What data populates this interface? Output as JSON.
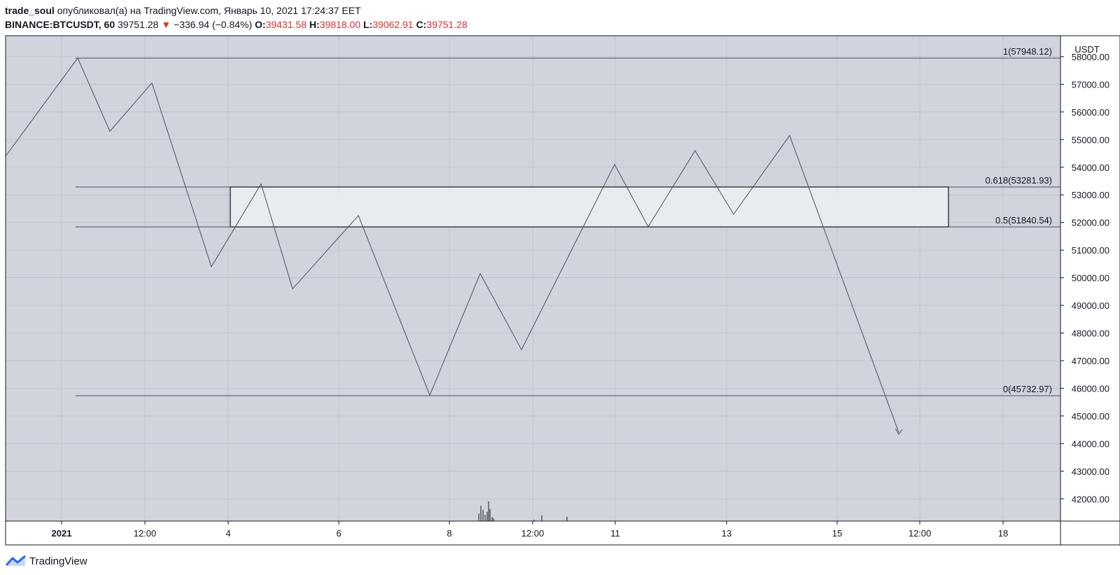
{
  "header": {
    "user": "trade_soul",
    "published_text": "опубликовал(а) на TradingView.com, Январь 10, 2021 17:24:37 EET",
    "symbol": "BINANCE:BTCUSDT, 60",
    "last_price": "39751.28",
    "change_arrow": "▼",
    "change": "−336.94 (−0.84%)",
    "ohlc": {
      "o_label": "O:",
      "o": "39431.58",
      "h_label": "H:",
      "h": "39818.00",
      "l_label": "L:",
      "l": "39062.91",
      "c_label": "C:",
      "c": "39751.28"
    }
  },
  "colors": {
    "plot_bg": "#d1d4dc",
    "grid": "#b8bcc6",
    "line": "#4a4f5c",
    "down": "#e0312f",
    "zone_fill": "#eceff3"
  },
  "price_axis": {
    "currency": "USDT",
    "ticks": [
      "58000.00",
      "57000.00",
      "56000.00",
      "55000.00",
      "54000.00",
      "53000.00",
      "52000.00",
      "51000.00",
      "50000.00",
      "49000.00",
      "48000.00",
      "47000.00",
      "46000.00",
      "45000.00",
      "44000.00",
      "43000.00",
      "42000.00"
    ]
  },
  "time_axis": {
    "labels": [
      "2021",
      "12:00",
      "4",
      "6",
      "8",
      "12:00",
      "11",
      "13",
      "15",
      "12:00",
      "18"
    ]
  },
  "fib_levels": [
    {
      "label": "1(57948.12)",
      "price": 57948.12
    },
    {
      "label": "0.618(53281.93)",
      "price": 53281.93
    },
    {
      "label": "0.5(51840.54)",
      "price": 51840.54
    },
    {
      "label": "0(45732.97)",
      "price": 45732.97
    }
  ],
  "zigzag_prices": [
    54400,
    57950,
    55300,
    57050,
    50400,
    53400,
    49600,
    52250,
    45750,
    50150,
    47400,
    54100,
    51850,
    54600,
    52300,
    55150,
    44400
  ],
  "footer": {
    "brand": "TradingView"
  }
}
